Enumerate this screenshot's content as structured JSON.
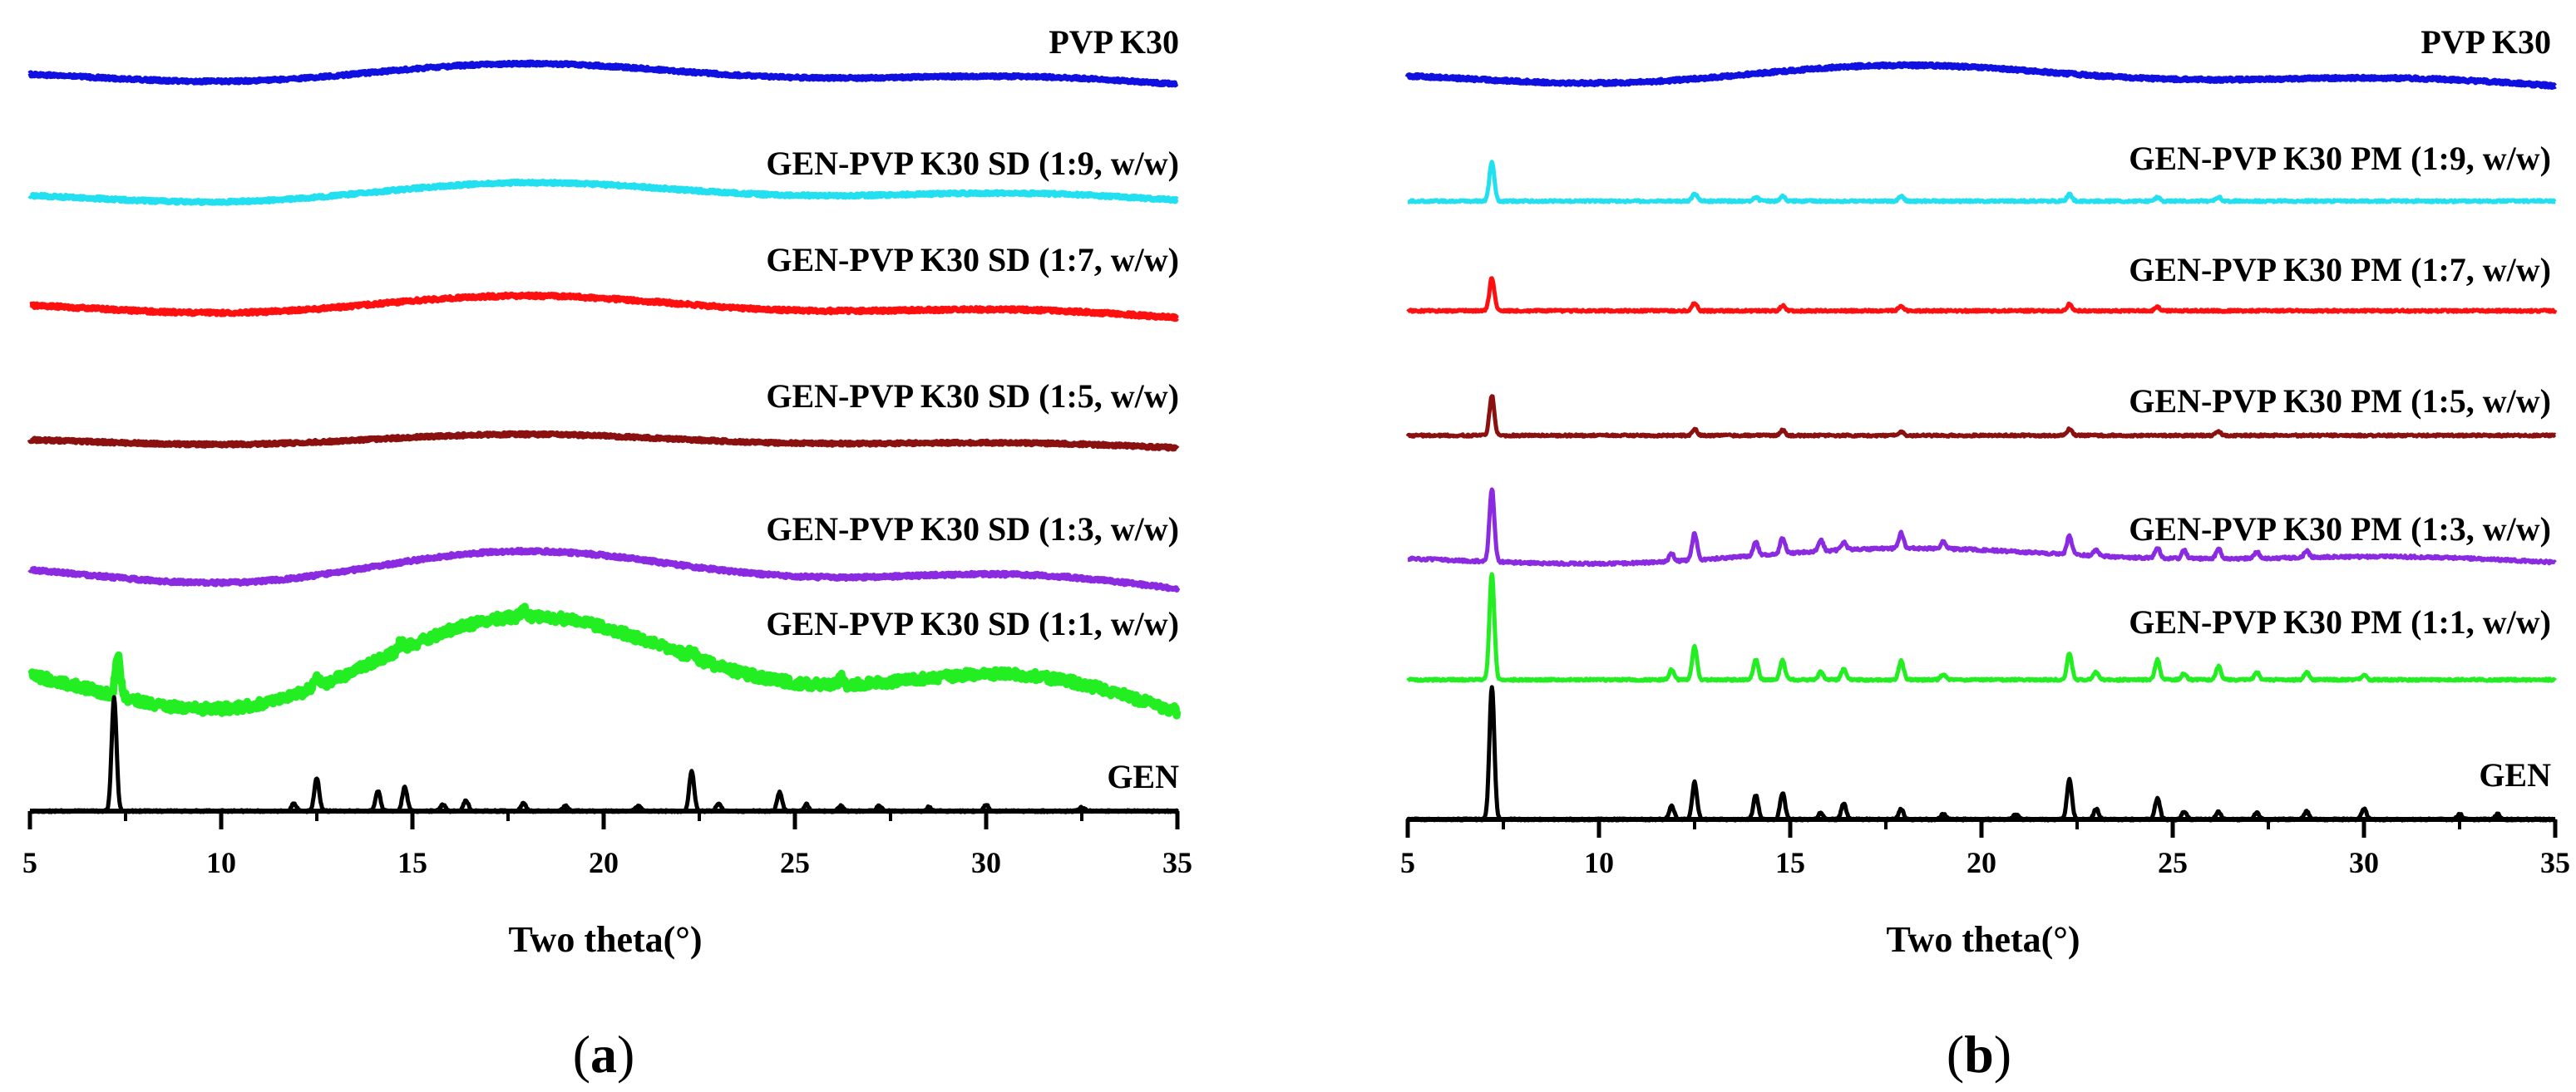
{
  "chart_data": [
    {
      "type": "line",
      "panel": "a",
      "caption": "(a)",
      "caption_letter": "a",
      "xlabel": "Two theta(°)",
      "xlim": [
        5,
        35
      ],
      "xticks": [
        5,
        10,
        15,
        20,
        25,
        30,
        35
      ],
      "ylabel": "",
      "grid": false,
      "series": [
        {
          "name": "PVP K30",
          "color": "#1010e0",
          "kind": "amorphous",
          "hump": 0.01,
          "noise": 0.001,
          "tilt": 0.004
        },
        {
          "name": "GEN-PVP K30 SD (1:9, w/w)",
          "color": "#22e0f0",
          "kind": "amorphous",
          "hump": 0.01,
          "noise": 0.001,
          "tilt": 0.0
        },
        {
          "name": "GEN-PVP K30 SD (1:7, w/w)",
          "color": "#ff1010",
          "kind": "amorphous",
          "hump": 0.01,
          "noise": 0.0012,
          "tilt": 0.006
        },
        {
          "name": "GEN-PVP K30 SD (1:5, w/w)",
          "color": "#8b1010",
          "kind": "amorphous",
          "hump": 0.006,
          "noise": 0.001,
          "tilt": 0.004
        },
        {
          "name": "GEN-PVP K30 SD (1:3, w/w)",
          "color": "#8a2be2",
          "kind": "amorphous",
          "hump": 0.018,
          "noise": 0.0012,
          "tilt": 0.008
        },
        {
          "name": "GEN-PVP K30 SD (1:1, w/w)",
          "color": "#22ee22",
          "kind": "amorphous-peak",
          "hump": 0.05,
          "noise": 0.0035,
          "tilt": 0.01,
          "peaks": [
            {
              "x": 7.3,
              "h": 0.03
            },
            {
              "x": 12.5,
              "h": 0.006
            },
            {
              "x": 14.7,
              "h": 0.006
            },
            {
              "x": 17.9,
              "h": 0.006
            },
            {
              "x": 22.3,
              "h": 0.006
            },
            {
              "x": 26.2,
              "h": 0.006
            }
          ]
        },
        {
          "name": "GEN",
          "color": "#000000",
          "kind": "crystalline",
          "noise": 0.0007,
          "tilt": 0.0,
          "peaks": [
            {
              "x": 7.2,
              "h": 0.085
            },
            {
              "x": 11.9,
              "h": 0.006
            },
            {
              "x": 12.5,
              "h": 0.025
            },
            {
              "x": 14.1,
              "h": 0.015
            },
            {
              "x": 14.8,
              "h": 0.018
            },
            {
              "x": 15.8,
              "h": 0.005
            },
            {
              "x": 16.4,
              "h": 0.008
            },
            {
              "x": 17.9,
              "h": 0.006
            },
            {
              "x": 19.0,
              "h": 0.004
            },
            {
              "x": 20.9,
              "h": 0.004
            },
            {
              "x": 22.3,
              "h": 0.03
            },
            {
              "x": 23.0,
              "h": 0.006
            },
            {
              "x": 24.6,
              "h": 0.014
            },
            {
              "x": 25.3,
              "h": 0.005
            },
            {
              "x": 26.2,
              "h": 0.004
            },
            {
              "x": 27.2,
              "h": 0.004
            },
            {
              "x": 28.5,
              "h": 0.003
            },
            {
              "x": 30.0,
              "h": 0.005
            },
            {
              "x": 32.5,
              "h": 0.003
            }
          ]
        }
      ]
    },
    {
      "type": "line",
      "panel": "b",
      "caption": "(b)",
      "caption_letter": "b",
      "xlabel": "Two theta(°)",
      "xlim": [
        5,
        35
      ],
      "xticks": [
        5,
        10,
        15,
        20,
        25,
        30,
        35
      ],
      "ylabel": "",
      "grid": false,
      "series": [
        {
          "name": "PVP K30",
          "color": "#1010e0",
          "kind": "amorphous",
          "hump": 0.01,
          "noise": 0.001,
          "tilt": 0.004
        },
        {
          "name": "GEN-PVP K30 PM (1:9, w/w)",
          "color": "#22e0f0",
          "kind": "crystalline",
          "noise": 0.0008,
          "tilt": 0.0,
          "peaks": [
            {
              "x": 7.2,
              "h": 0.03
            },
            {
              "x": 12.5,
              "h": 0.006
            },
            {
              "x": 14.1,
              "h": 0.003
            },
            {
              "x": 14.8,
              "h": 0.004
            },
            {
              "x": 17.9,
              "h": 0.004
            },
            {
              "x": 22.3,
              "h": 0.005
            },
            {
              "x": 24.6,
              "h": 0.003
            },
            {
              "x": 26.2,
              "h": 0.003
            }
          ]
        },
        {
          "name": "GEN-PVP K30 PM (1:7, w/w)",
          "color": "#ff1010",
          "kind": "crystalline",
          "noise": 0.0008,
          "tilt": 0.0,
          "peaks": [
            {
              "x": 7.2,
              "h": 0.025
            },
            {
              "x": 12.5,
              "h": 0.006
            },
            {
              "x": 14.8,
              "h": 0.004
            },
            {
              "x": 17.9,
              "h": 0.004
            },
            {
              "x": 22.3,
              "h": 0.005
            },
            {
              "x": 24.6,
              "h": 0.003
            }
          ]
        },
        {
          "name": "GEN-PVP K30 PM (1:5, w/w)",
          "color": "#8b1010",
          "kind": "crystalline",
          "noise": 0.0008,
          "tilt": 0.0,
          "peaks": [
            {
              "x": 7.2,
              "h": 0.03
            },
            {
              "x": 12.5,
              "h": 0.005
            },
            {
              "x": 14.8,
              "h": 0.004
            },
            {
              "x": 17.9,
              "h": 0.003
            },
            {
              "x": 22.3,
              "h": 0.005
            },
            {
              "x": 26.2,
              "h": 0.003
            }
          ]
        },
        {
          "name": "GEN-PVP K30 PM (1:3, w/w)",
          "color": "#8a2be2",
          "kind": "crystalline",
          "noise": 0.001,
          "tilt": 0.0,
          "hump": 0.008,
          "peaks": [
            {
              "x": 7.2,
              "h": 0.055
            },
            {
              "x": 11.9,
              "h": 0.006
            },
            {
              "x": 12.5,
              "h": 0.02
            },
            {
              "x": 14.1,
              "h": 0.01
            },
            {
              "x": 14.8,
              "h": 0.012
            },
            {
              "x": 15.8,
              "h": 0.008
            },
            {
              "x": 16.4,
              "h": 0.006
            },
            {
              "x": 17.9,
              "h": 0.012
            },
            {
              "x": 19.0,
              "h": 0.005
            },
            {
              "x": 22.3,
              "h": 0.014
            },
            {
              "x": 23.0,
              "h": 0.005
            },
            {
              "x": 24.6,
              "h": 0.008
            },
            {
              "x": 25.3,
              "h": 0.006
            },
            {
              "x": 26.2,
              "h": 0.008
            },
            {
              "x": 27.2,
              "h": 0.005
            },
            {
              "x": 28.5,
              "h": 0.005
            }
          ]
        },
        {
          "name": "GEN-PVP K30 PM (1:1, w/w)",
          "color": "#22ee22",
          "kind": "crystalline",
          "noise": 0.0008,
          "tilt": 0.0,
          "peaks": [
            {
              "x": 7.2,
              "h": 0.08
            },
            {
              "x": 11.9,
              "h": 0.008
            },
            {
              "x": 12.5,
              "h": 0.025
            },
            {
              "x": 14.1,
              "h": 0.015
            },
            {
              "x": 14.8,
              "h": 0.015
            },
            {
              "x": 15.8,
              "h": 0.006
            },
            {
              "x": 16.4,
              "h": 0.008
            },
            {
              "x": 17.9,
              "h": 0.014
            },
            {
              "x": 19.0,
              "h": 0.004
            },
            {
              "x": 22.3,
              "h": 0.02
            },
            {
              "x": 23.0,
              "h": 0.006
            },
            {
              "x": 24.6,
              "h": 0.015
            },
            {
              "x": 25.3,
              "h": 0.005
            },
            {
              "x": 26.2,
              "h": 0.01
            },
            {
              "x": 27.2,
              "h": 0.006
            },
            {
              "x": 28.5,
              "h": 0.006
            },
            {
              "x": 30.0,
              "h": 0.004
            }
          ]
        },
        {
          "name": "GEN",
          "color": "#000000",
          "kind": "crystalline",
          "noise": 0.0007,
          "tilt": 0.0,
          "peaks": [
            {
              "x": 7.2,
              "h": 0.1
            },
            {
              "x": 11.9,
              "h": 0.01
            },
            {
              "x": 12.5,
              "h": 0.028
            },
            {
              "x": 14.1,
              "h": 0.018
            },
            {
              "x": 14.8,
              "h": 0.02
            },
            {
              "x": 15.8,
              "h": 0.005
            },
            {
              "x": 16.4,
              "h": 0.012
            },
            {
              "x": 17.9,
              "h": 0.008
            },
            {
              "x": 19.0,
              "h": 0.004
            },
            {
              "x": 20.9,
              "h": 0.004
            },
            {
              "x": 22.3,
              "h": 0.03
            },
            {
              "x": 23.0,
              "h": 0.008
            },
            {
              "x": 24.6,
              "h": 0.016
            },
            {
              "x": 25.3,
              "h": 0.006
            },
            {
              "x": 26.2,
              "h": 0.006
            },
            {
              "x": 27.2,
              "h": 0.005
            },
            {
              "x": 28.5,
              "h": 0.006
            },
            {
              "x": 30.0,
              "h": 0.008
            },
            {
              "x": 32.5,
              "h": 0.004
            },
            {
              "x": 33.5,
              "h": 0.004
            }
          ]
        }
      ]
    }
  ]
}
